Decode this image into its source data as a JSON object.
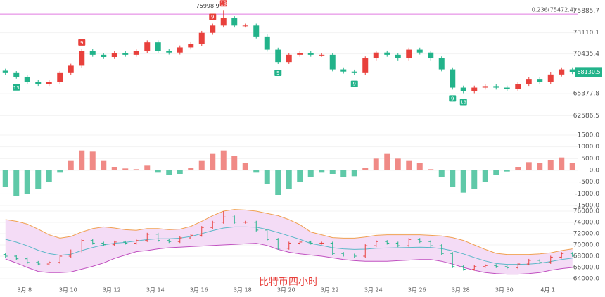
{
  "chart_data": [
    {
      "type": "candlestick",
      "categories": [
        null,
        null,
        "3月 8",
        null,
        null,
        null,
        "3月 10",
        null,
        null,
        null,
        "3月 12",
        null,
        null,
        null,
        "3月 14",
        null,
        null,
        null,
        "3月 16",
        null,
        null,
        null,
        "3月 18",
        null,
        null,
        null,
        "3月 20",
        null,
        null,
        null,
        "3月 22",
        null,
        null,
        null,
        "3月 24",
        null,
        null,
        null,
        "3月 26",
        null,
        null,
        null,
        "3月 28",
        null,
        null,
        null,
        "3月 30",
        null,
        null,
        null,
        "4月 1",
        null,
        null
      ],
      "open": [
        68300,
        68000,
        67540,
        66890,
        66620,
        66890,
        68000,
        68930,
        70780,
        70320,
        70040,
        70510,
        70320,
        70780,
        71900,
        70780,
        70600,
        71250,
        71710,
        73100,
        74030,
        74960,
        74030,
        74030,
        72640,
        70970,
        69400,
        70320,
        70510,
        70320,
        70320,
        68470,
        68190,
        68000,
        69860,
        70600,
        70320,
        69860,
        70970,
        70600,
        69860,
        68470,
        66150,
        65690,
        66150,
        66340,
        66150,
        65970,
        66620,
        67260,
        66890,
        67820,
        68470
      ],
      "high": [
        68550,
        68250,
        67790,
        67140,
        67140,
        68250,
        69180,
        71030,
        71030,
        70570,
        70760,
        70760,
        71030,
        72150,
        72150,
        71030,
        71500,
        71960,
        73350,
        74280,
        75998.9,
        75210,
        74280,
        74280,
        72890,
        71220,
        70570,
        70760,
        70760,
        70570,
        70570,
        68720,
        68440,
        70110,
        70850,
        70850,
        70570,
        71220,
        71220,
        70850,
        70110,
        68720,
        66400,
        66400,
        66590,
        66590,
        66400,
        66870,
        67510,
        67510,
        68070,
        68720,
        68720
      ],
      "low": [
        67750,
        67290,
        66640,
        66370,
        66370,
        66640,
        67750,
        68680,
        70070,
        69790,
        69790,
        70070,
        70070,
        70530,
        70530,
        70350,
        70350,
        71000,
        71460,
        72850,
        73780,
        73780,
        73780,
        72390,
        70720,
        69150,
        69150,
        70070,
        70070,
        70070,
        68220,
        67940,
        67750,
        67750,
        69610,
        70070,
        69610,
        69610,
        70350,
        69610,
        68220,
        65900,
        65440,
        65440,
        65900,
        65900,
        65720,
        65720,
        66370,
        66640,
        66640,
        67570,
        67880.5
      ],
      "close": [
        68000,
        67540,
        66890,
        66620,
        66890,
        68000,
        68930,
        70780,
        70320,
        70040,
        70510,
        70320,
        70780,
        71900,
        70780,
        70600,
        71250,
        71710,
        73100,
        74030,
        74960,
        74030,
        74030,
        72640,
        70970,
        69400,
        70320,
        70510,
        70320,
        70320,
        68470,
        68190,
        68000,
        69860,
        70600,
        70320,
        69860,
        70970,
        70600,
        69860,
        68470,
        66150,
        65690,
        66150,
        66340,
        66150,
        65970,
        66620,
        67260,
        66890,
        67820,
        68470,
        68130.5
      ],
      "up_color": "#e8403c",
      "down_color": "#22b38a",
      "ylim": [
        61196,
        77275
      ],
      "yticks": [
        75885.7,
        73110.1,
        70435.4,
        65377.8,
        62586.5
      ],
      "ref_line": {
        "label": "0.236(75472.4)",
        "value": 75472.4,
        "color": "#e07ae0"
      },
      "signals": [
        {
          "label": "9",
          "index": 7,
          "side": "up"
        },
        {
          "label": "9",
          "index": 19,
          "side": "up"
        },
        {
          "label": "13",
          "index": 20,
          "side": "up"
        },
        {
          "label": "13",
          "index": 1,
          "side": "down"
        },
        {
          "label": "9",
          "index": 25,
          "side": "down"
        },
        {
          "label": "9",
          "index": 32,
          "side": "down"
        },
        {
          "label": "9",
          "index": 41,
          "side": "down"
        },
        {
          "label": "13",
          "index": 42,
          "side": "down"
        }
      ]
    },
    {
      "type": "bar",
      "values": [
        -700,
        -1100,
        -1000,
        -800,
        -500,
        -100,
        400,
        850,
        800,
        400,
        150,
        80,
        50,
        200,
        -100,
        -200,
        -150,
        100,
        400,
        700,
        850,
        600,
        300,
        -100,
        -600,
        -1050,
        -800,
        -500,
        -300,
        -100,
        -150,
        -300,
        -250,
        100,
        500,
        700,
        500,
        400,
        300,
        50,
        -300,
        -700,
        -950,
        -800,
        -500,
        -200,
        -50,
        150,
        350,
        300,
        450,
        550,
        300
      ],
      "ylim": [
        -1800,
        1800
      ],
      "yticks": [
        {
          "value": 1500,
          "label": "1500.0"
        },
        {
          "value": 1000,
          "label": "1000.0"
        },
        {
          "value": 500,
          "label": "500.0"
        },
        {
          "value": 0,
          "label": "0.0"
        },
        {
          "value": -500,
          "label": "-500.0"
        },
        {
          "value": -1000,
          "label": "-1000.0"
        },
        {
          "value": -1500,
          "label": "-1500.0"
        }
      ]
    },
    {
      "type": "band",
      "upper": [
        74500,
        74200,
        73700,
        72800,
        71800,
        71200,
        71500,
        72300,
        72900,
        73200,
        73000,
        72700,
        72600,
        72900,
        72900,
        72700,
        72800,
        73300,
        74200,
        75200,
        76000,
        76300,
        76200,
        76000,
        75600,
        75200,
        74500,
        73600,
        72300,
        71800,
        71300,
        71200,
        71200,
        71400,
        71700,
        71800,
        71800,
        71800,
        71800,
        71700,
        71600,
        71300,
        70800,
        70000,
        69200,
        68500,
        68300,
        68300,
        68300,
        68400,
        68600,
        69000,
        69300
      ],
      "middle": [
        71000,
        70500,
        69850,
        69050,
        68450,
        68150,
        68350,
        69000,
        69550,
        70000,
        70300,
        70450,
        70700,
        70950,
        71100,
        71100,
        71200,
        71500,
        72000,
        72550,
        73000,
        73200,
        73200,
        73150,
        72750,
        72200,
        71600,
        71000,
        70250,
        69900,
        69500,
        69300,
        69200,
        69250,
        69400,
        69450,
        69500,
        69550,
        69600,
        69550,
        69350,
        68950,
        68400,
        67750,
        67150,
        66700,
        66550,
        66550,
        66600,
        66750,
        67050,
        67400,
        67650
      ],
      "lower": [
        67500,
        66800,
        66000,
        65300,
        65100,
        65100,
        65200,
        65700,
        66200,
        66800,
        67600,
        68200,
        68800,
        69000,
        69300,
        69500,
        69600,
        69700,
        69800,
        69900,
        70000,
        70100,
        70200,
        70300,
        69900,
        69200,
        68700,
        68400,
        68200,
        68000,
        67700,
        67400,
        67200,
        67100,
        67100,
        67100,
        67200,
        67300,
        67400,
        67400,
        67100,
        66600,
        66000,
        65500,
        65100,
        64900,
        64800,
        64800,
        64900,
        65100,
        65500,
        65800,
        66000
      ],
      "colors": {
        "upper": "#f0a050",
        "middle": "#5cb8c8",
        "lower": "#c050c0",
        "fill": "#f4dcf6"
      },
      "ylim": [
        63500,
        76250
      ],
      "yticks": [
        {
          "value": 76000,
          "label": "76000.0"
        },
        {
          "value": 74000,
          "label": "74000.0"
        },
        {
          "value": 72000,
          "label": "72000.0"
        },
        {
          "value": 70000,
          "label": "70000.0"
        },
        {
          "value": 68000,
          "label": "68000.0"
        },
        {
          "value": 66000,
          "label": "66000.0"
        },
        {
          "value": 64000,
          "label": "64000.0"
        }
      ],
      "title": "比特币四小时"
    }
  ]
}
